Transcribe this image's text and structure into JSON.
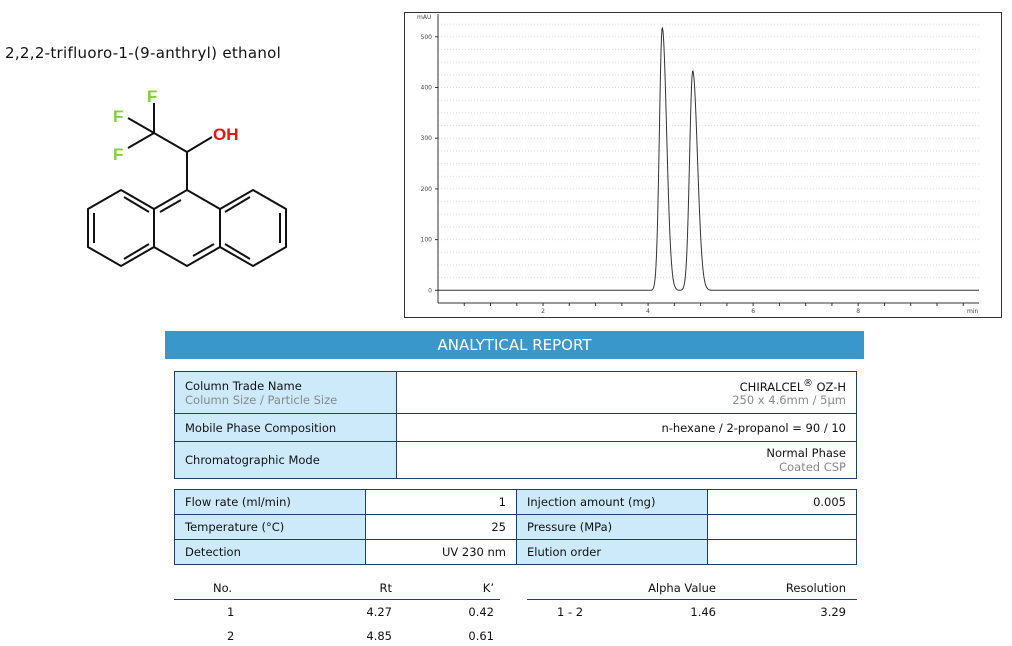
{
  "compound_name": "2,2,2-trifluoro-1-(9-anthryl) ethanol",
  "structure": {
    "atoms": [
      "F",
      "F",
      "F",
      "OH"
    ],
    "colors": {
      "F": "#7fd13b",
      "OH": "#ee1111",
      "bond": "#111111"
    }
  },
  "chart_data": {
    "type": "line",
    "ylabel": "mAU",
    "xlabel": "min",
    "xlim": [
      0,
      10.3
    ],
    "ylim": [
      -25,
      545
    ],
    "xticks": [
      "2",
      "4",
      "6",
      "8"
    ],
    "xtick_values": [
      2,
      4,
      6,
      8
    ],
    "yticks": [
      "0",
      "100",
      "200",
      "300",
      "400",
      "500"
    ],
    "ytick_values": [
      0,
      100,
      200,
      300,
      400,
      500
    ],
    "grid": true,
    "peaks": [
      {
        "rt": 4.27,
        "height": 518,
        "width": 0.055
      },
      {
        "rt": 4.85,
        "height": 433,
        "width": 0.06
      }
    ],
    "line_color": "#333333"
  },
  "report": {
    "banner": "ANALYTICAL REPORT",
    "column": {
      "label": "Column Trade Name",
      "sublabel": "Column Size / Particle Size",
      "value": "CHIRALCEL",
      "value_sup": "®",
      "value_suffix": " OZ-H",
      "subvalue": "250 x 4.6mm / 5µm"
    },
    "mobile_phase": {
      "label": "Mobile Phase Composition",
      "value": "n-hexane / 2-propanol = 90 / 10"
    },
    "mode": {
      "label": "Chromatographic Mode",
      "value": "Normal Phase",
      "subvalue": "Coated CSP"
    },
    "conditions": [
      {
        "label": "Flow rate (ml/min)",
        "value": "1",
        "label2": "Injection amount (mg)",
        "value2": "0.005"
      },
      {
        "label": "Temperature (°C)",
        "value": "25",
        "label2": "Pressure (MPa)",
        "value2": ""
      },
      {
        "label": "Detection",
        "value": "UV 230 nm",
        "label2": "Elution order",
        "value2": ""
      }
    ],
    "results": {
      "headers": {
        "no": "No.",
        "rt": "Rt",
        "k": "K’",
        "alpha": "Alpha Value",
        "resolution": "Resolution"
      },
      "rows": [
        {
          "no": "1",
          "rt": "4.27",
          "k": "0.42"
        },
        {
          "no": "2",
          "rt": "4.85",
          "k": "0.61"
        }
      ],
      "pairs": [
        {
          "pair": "1 - 2",
          "alpha": "1.46",
          "resolution": "3.29"
        }
      ]
    }
  }
}
